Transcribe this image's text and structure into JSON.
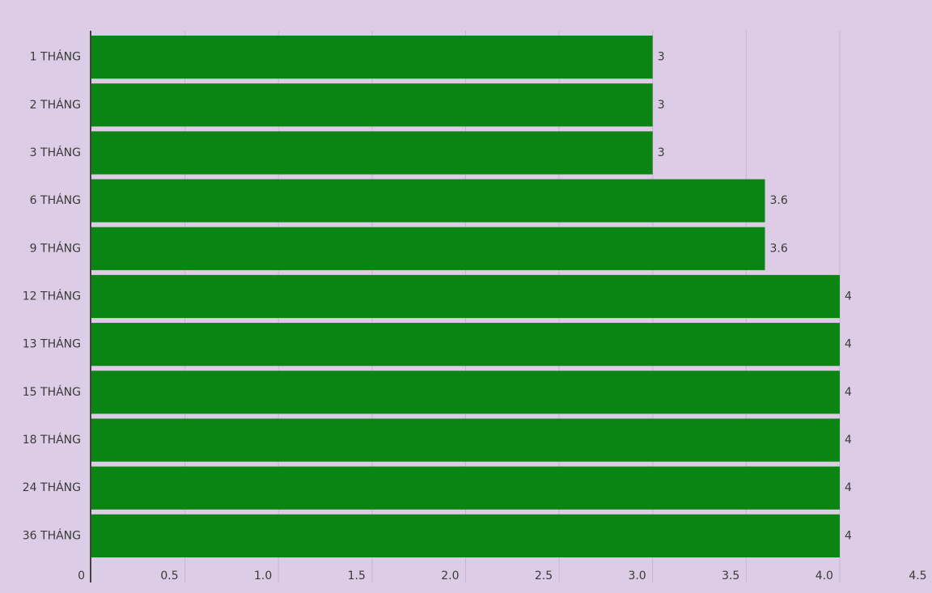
{
  "chart_data": {
    "type": "hbar",
    "categories": [
      "1 THÁNG",
      "2 THÁNG",
      "3 THÁNG",
      "6 THÁNG",
      "9 THÁNG",
      "12 THÁNG",
      "13 THÁNG",
      "15 THÁNG",
      "18 THÁNG",
      "24 THÁNG",
      "36 THÁNG"
    ],
    "values": [
      3,
      3,
      3,
      3.6,
      3.6,
      4,
      4,
      4,
      4,
      4,
      4
    ],
    "color": "#0a8413",
    "xlim": [
      0,
      4.5
    ],
    "xticks": [
      0,
      0.5,
      {
        "value": 1,
        "label": "1.0"
      },
      1.5,
      {
        "value": 2,
        "label": "2.0"
      },
      2.5,
      {
        "value": 3,
        "label": "3.0"
      },
      3.5,
      {
        "value": 4,
        "label": "4.0"
      },
      4.5
    ],
    "grid": true
  }
}
